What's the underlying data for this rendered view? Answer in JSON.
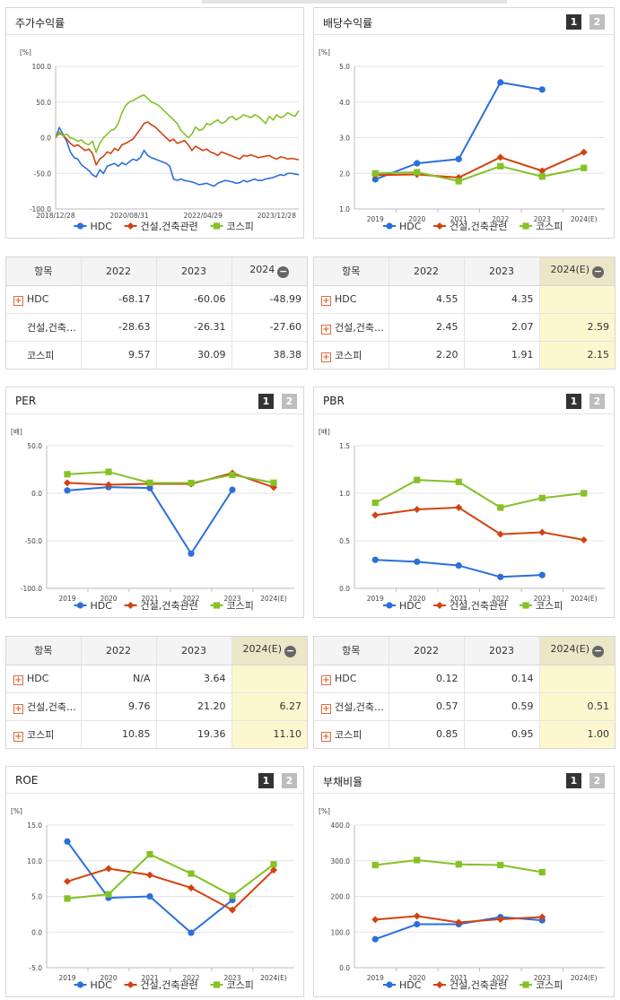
{
  "colors": {
    "hdc": "#2b6fdc",
    "construction": "#d2420f",
    "kospi": "#84c226"
  },
  "legend": [
    "HDC",
    "건설,건축관련",
    "코스피"
  ],
  "pager": [
    "1",
    "2"
  ],
  "panels": {
    "stock": {
      "title": "주가수익률",
      "unit": "[%]"
    },
    "dividend": {
      "title": "배당수익률",
      "unit": "[%]"
    },
    "per": {
      "title": "PER",
      "unit": "[배]"
    },
    "pbr": {
      "title": "PBR",
      "unit": "[배]"
    },
    "roe": {
      "title": "ROE",
      "unit": "[%]"
    },
    "debt": {
      "title": "부채비율",
      "unit": "[%]"
    }
  },
  "tables": {
    "stock": {
      "headers": [
        "항목",
        "2022",
        "2023",
        "2024"
      ],
      "rows": [
        {
          "label": "HDC",
          "expand": true,
          "values": [
            "-68.17",
            "-60.06",
            "-48.99"
          ]
        },
        {
          "label": "건설,건축관련",
          "expand": false,
          "values": [
            "-28.63",
            "-26.31",
            "-27.60"
          ]
        },
        {
          "label": "코스피",
          "expand": false,
          "values": [
            "9.57",
            "30.09",
            "38.38"
          ]
        }
      ]
    },
    "dividend": {
      "headers": [
        "항목",
        "2022",
        "2023",
        "2024(E)"
      ],
      "rows": [
        {
          "label": "HDC",
          "expand": true,
          "values": [
            "4.55",
            "4.35",
            ""
          ]
        },
        {
          "label": "건설,건축관련",
          "expand": true,
          "values": [
            "2.45",
            "2.07",
            "2.59"
          ]
        },
        {
          "label": "코스피",
          "expand": true,
          "values": [
            "2.20",
            "1.91",
            "2.15"
          ]
        }
      ]
    },
    "per": {
      "headers": [
        "항목",
        "2022",
        "2023",
        "2024(E)"
      ],
      "rows": [
        {
          "label": "HDC",
          "expand": true,
          "values": [
            "N/A",
            "3.64",
            ""
          ]
        },
        {
          "label": "건설,건축관련",
          "expand": true,
          "values": [
            "9.76",
            "21.20",
            "6.27"
          ]
        },
        {
          "label": "코스피",
          "expand": true,
          "values": [
            "10.85",
            "19.36",
            "11.10"
          ]
        }
      ]
    },
    "pbr": {
      "headers": [
        "항목",
        "2022",
        "2023",
        "2024(E)"
      ],
      "rows": [
        {
          "label": "HDC",
          "expand": true,
          "values": [
            "0.12",
            "0.14",
            ""
          ]
        },
        {
          "label": "건설,건축관련",
          "expand": true,
          "values": [
            "0.57",
            "0.59",
            "0.51"
          ]
        },
        {
          "label": "코스피",
          "expand": true,
          "values": [
            "0.85",
            "0.95",
            "1.00"
          ]
        }
      ]
    }
  },
  "chart_data": [
    {
      "id": "stock",
      "type": "line",
      "title": "주가수익률",
      "ylabel": "[%]",
      "ylim": [
        -100,
        100
      ],
      "yticks": [
        "-100.0",
        "-50.0",
        "0.0",
        "50.0",
        "100.0"
      ],
      "xticks": [
        "2018/12/28",
        "2020/08/31",
        "2022/04/29",
        "2023/12/28"
      ],
      "x_range_months": [
        0,
        66
      ],
      "series": [
        {
          "name": "HDC",
          "x": [
            0,
            1,
            2,
            3,
            4,
            5,
            6,
            7,
            8,
            9,
            10,
            11,
            12,
            13,
            14,
            15,
            16,
            17,
            18,
            19,
            20,
            21,
            22,
            23,
            24,
            25,
            26,
            27,
            28,
            29,
            30,
            31,
            32,
            33,
            34,
            35,
            36,
            37,
            38,
            39,
            40,
            41,
            42,
            43,
            44,
            45,
            46,
            47,
            48,
            49,
            50,
            51,
            52,
            53,
            54,
            55,
            56,
            57,
            58,
            59,
            60,
            61,
            62,
            63,
            64,
            65,
            66
          ],
          "values": [
            0,
            14,
            5,
            -5,
            -20,
            -28,
            -30,
            -38,
            -42,
            -46,
            -52,
            -55,
            -45,
            -50,
            -40,
            -38,
            -36,
            -40,
            -35,
            -38,
            -34,
            -30,
            -32,
            -28,
            -18,
            -25,
            -28,
            -30,
            -32,
            -34,
            -36,
            -40,
            -58,
            -60,
            -58,
            -60,
            -61,
            -62,
            -64,
            -66,
            -65,
            -64,
            -66,
            -68,
            -64,
            -62,
            -60,
            -61,
            -62,
            -64,
            -63,
            -60,
            -62,
            -60,
            -58,
            -60,
            -60,
            -58,
            -57,
            -56,
            -54,
            -52,
            -53,
            -50,
            -50,
            -51,
            -52
          ]
        },
        {
          "name": "건설,건축관련",
          "x": [
            0,
            1,
            2,
            3,
            4,
            5,
            6,
            7,
            8,
            9,
            10,
            11,
            12,
            13,
            14,
            15,
            16,
            17,
            18,
            19,
            20,
            21,
            22,
            23,
            24,
            25,
            26,
            27,
            28,
            29,
            30,
            31,
            32,
            33,
            34,
            35,
            36,
            37,
            38,
            39,
            40,
            41,
            42,
            43,
            44,
            45,
            46,
            47,
            48,
            49,
            50,
            51,
            52,
            53,
            54,
            55,
            56,
            57,
            58,
            59,
            60,
            61,
            62,
            63,
            64,
            65,
            66
          ],
          "values": [
            0,
            6,
            3,
            -2,
            -8,
            -12,
            -10,
            -14,
            -18,
            -16,
            -22,
            -38,
            -30,
            -26,
            -20,
            -22,
            -15,
            -18,
            -10,
            -8,
            -5,
            -2,
            5,
            12,
            20,
            22,
            18,
            15,
            10,
            5,
            0,
            -5,
            -2,
            -8,
            -6,
            -4,
            -10,
            -18,
            -12,
            -15,
            -18,
            -16,
            -20,
            -22,
            -25,
            -20,
            -22,
            -24,
            -26,
            -28,
            -30,
            -25,
            -26,
            -24,
            -26,
            -28,
            -27,
            -26,
            -25,
            -28,
            -30,
            -27,
            -28,
            -30,
            -29,
            -30,
            -31
          ]
        },
        {
          "name": "코스피",
          "x": [
            0,
            1,
            2,
            3,
            4,
            5,
            6,
            7,
            8,
            9,
            10,
            11,
            12,
            13,
            14,
            15,
            16,
            17,
            18,
            19,
            20,
            21,
            22,
            23,
            24,
            25,
            26,
            27,
            28,
            29,
            30,
            31,
            32,
            33,
            34,
            35,
            36,
            37,
            38,
            39,
            40,
            41,
            42,
            43,
            44,
            45,
            46,
            47,
            48,
            49,
            50,
            51,
            52,
            53,
            54,
            55,
            56,
            57,
            58,
            59,
            60,
            61,
            62,
            63,
            64,
            65,
            66
          ],
          "values": [
            0,
            8,
            3,
            5,
            0,
            -2,
            -5,
            -3,
            -8,
            -10,
            -5,
            -20,
            -8,
            0,
            5,
            10,
            12,
            20,
            35,
            45,
            50,
            52,
            55,
            58,
            60,
            55,
            50,
            48,
            45,
            40,
            35,
            30,
            25,
            20,
            10,
            5,
            0,
            5,
            15,
            10,
            12,
            20,
            18,
            22,
            25,
            20,
            22,
            28,
            30,
            25,
            28,
            32,
            30,
            28,
            32,
            30,
            25,
            20,
            30,
            25,
            32,
            28,
            30,
            35,
            32,
            30,
            38
          ]
        }
      ]
    },
    {
      "id": "dividend",
      "type": "line",
      "title": "배당수익률",
      "ylabel": "[%]",
      "ylim": [
        1.0,
        5.0
      ],
      "yticks": [
        "1.0",
        "2.0",
        "3.0",
        "4.0",
        "5.0"
      ],
      "categories": [
        "2019",
        "2020",
        "2021",
        "2022",
        "2023",
        "2024(E)"
      ],
      "series": [
        {
          "name": "HDC",
          "values": [
            1.83,
            2.28,
            2.4,
            4.55,
            4.35,
            null
          ]
        },
        {
          "name": "건설,건축관련",
          "values": [
            1.95,
            1.97,
            1.88,
            2.45,
            2.07,
            2.59
          ]
        },
        {
          "name": "코스피",
          "values": [
            2.0,
            2.03,
            1.78,
            2.2,
            1.91,
            2.15
          ]
        }
      ]
    },
    {
      "id": "per",
      "type": "line",
      "title": "PER",
      "ylabel": "[배]",
      "ylim": [
        -100,
        50
      ],
      "yticks": [
        "-100.0",
        "-50.0",
        "0.0",
        "50.0"
      ],
      "categories": [
        "2019",
        "2020",
        "2021",
        "2022",
        "2023",
        "2024(E)"
      ],
      "series": [
        {
          "name": "HDC",
          "values": [
            3.0,
            6.5,
            5.5,
            -63.5,
            3.64,
            null
          ]
        },
        {
          "name": "건설,건축관련",
          "values": [
            11.0,
            9.0,
            10.0,
            9.76,
            21.2,
            6.27
          ]
        },
        {
          "name": "코스피",
          "values": [
            20.0,
            22.5,
            11.0,
            10.85,
            19.36,
            11.1
          ]
        }
      ]
    },
    {
      "id": "pbr",
      "type": "line",
      "title": "PBR",
      "ylabel": "[배]",
      "ylim": [
        0.0,
        1.5
      ],
      "yticks": [
        "0.0",
        "0.5",
        "1.0",
        "1.5"
      ],
      "categories": [
        "2019",
        "2020",
        "2021",
        "2022",
        "2023",
        "2024(E)"
      ],
      "series": [
        {
          "name": "HDC",
          "values": [
            0.3,
            0.28,
            0.24,
            0.12,
            0.14,
            null
          ]
        },
        {
          "name": "건설,건축관련",
          "values": [
            0.77,
            0.83,
            0.85,
            0.57,
            0.59,
            0.51
          ]
        },
        {
          "name": "코스피",
          "values": [
            0.9,
            1.14,
            1.12,
            0.85,
            0.95,
            1.0
          ]
        }
      ]
    },
    {
      "id": "roe",
      "type": "line",
      "title": "ROE",
      "ylabel": "[%]",
      "ylim": [
        -5.0,
        15.0
      ],
      "yticks": [
        "-5.0",
        "0.0",
        "5.0",
        "10.0",
        "15.0"
      ],
      "categories": [
        "2019",
        "2020",
        "2021",
        "2022",
        "2023",
        "2024(E)"
      ],
      "series": [
        {
          "name": "HDC",
          "values": [
            12.7,
            4.8,
            5.0,
            -0.1,
            4.5,
            null
          ]
        },
        {
          "name": "건설,건축관련",
          "values": [
            7.1,
            8.9,
            8.0,
            6.2,
            3.1,
            8.7
          ]
        },
        {
          "name": "코스피",
          "values": [
            4.7,
            5.3,
            10.9,
            8.2,
            5.1,
            9.5
          ]
        }
      ]
    },
    {
      "id": "debt",
      "type": "line",
      "title": "부채비율",
      "ylabel": "[%]",
      "ylim": [
        0,
        400
      ],
      "yticks": [
        "0.0",
        "100.0",
        "200.0",
        "300.0",
        "400.0"
      ],
      "categories": [
        "2019",
        "2020",
        "2021",
        "2022",
        "2023",
        "2024(E)"
      ],
      "series": [
        {
          "name": "HDC",
          "values": [
            80,
            122,
            122,
            142,
            133,
            null
          ]
        },
        {
          "name": "건설,건축관련",
          "values": [
            135,
            145,
            127,
            136,
            142,
            null
          ]
        },
        {
          "name": "코스피",
          "values": [
            288,
            302,
            290,
            288,
            268,
            null
          ]
        }
      ]
    }
  ]
}
